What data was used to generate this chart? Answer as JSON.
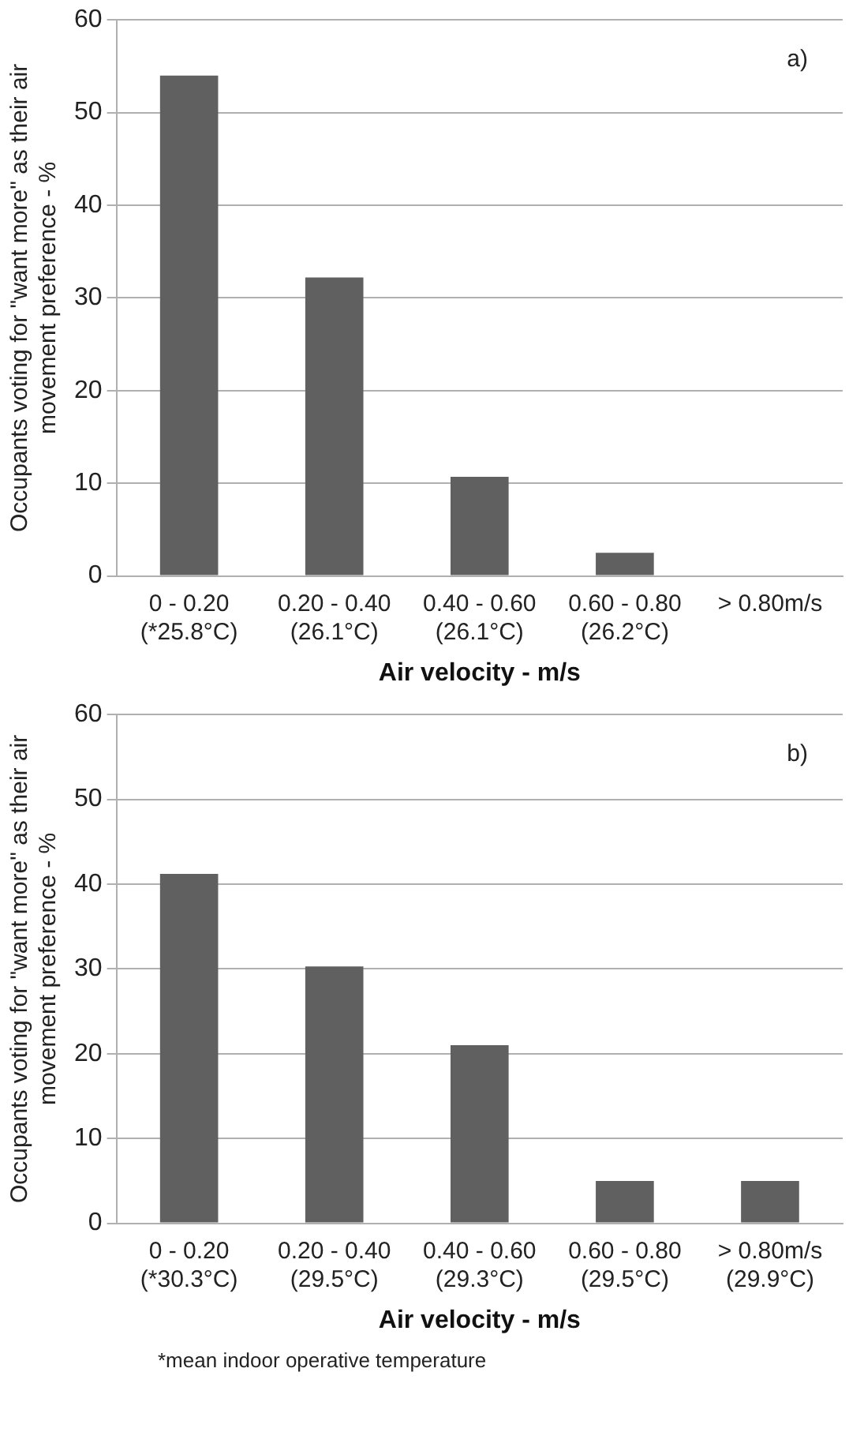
{
  "chart_data": [
    {
      "type": "bar",
      "categories": [
        "0 - 0.20\n(*25.8°C)",
        "0.20 - 0.40\n(26.1°C)",
        "0.40 - 0.60\n(26.1°C)",
        "0.60 - 0.80\n(26.2°C)",
        "> 0.80m/s"
      ],
      "values": [
        54,
        32.2,
        10.7,
        2.5,
        0
      ],
      "color": "#606060",
      "xlabel": "Air velocity - m/s",
      "ylabel": "Occupants voting for \"want more\" as their air movement preference - %",
      "ylim": [
        0,
        60
      ],
      "yticks": [
        0,
        10,
        20,
        30,
        40,
        50,
        60
      ],
      "grid": "y",
      "legend": false,
      "annotations": [
        "a)"
      ]
    },
    {
      "type": "bar",
      "categories": [
        "0 - 0.20\n(*30.3°C)",
        "0.20 - 0.40\n(29.5°C)",
        "0.40 - 0.60\n(29.3°C)",
        "0.60 - 0.80\n(29.5°C)",
        "> 0.80m/s\n(29.9°C)"
      ],
      "values": [
        41.2,
        30.3,
        21,
        5,
        5
      ],
      "color": "#606060",
      "xlabel": "Air velocity - m/s",
      "ylabel": "Occupants voting for \"want more\" as their air movement preference - %",
      "ylim": [
        0,
        60
      ],
      "yticks": [
        0,
        10,
        20,
        30,
        40,
        50,
        60
      ],
      "grid": "y",
      "legend": false,
      "annotations": [
        "b)",
        "*mean indoor operative temperature"
      ]
    }
  ]
}
